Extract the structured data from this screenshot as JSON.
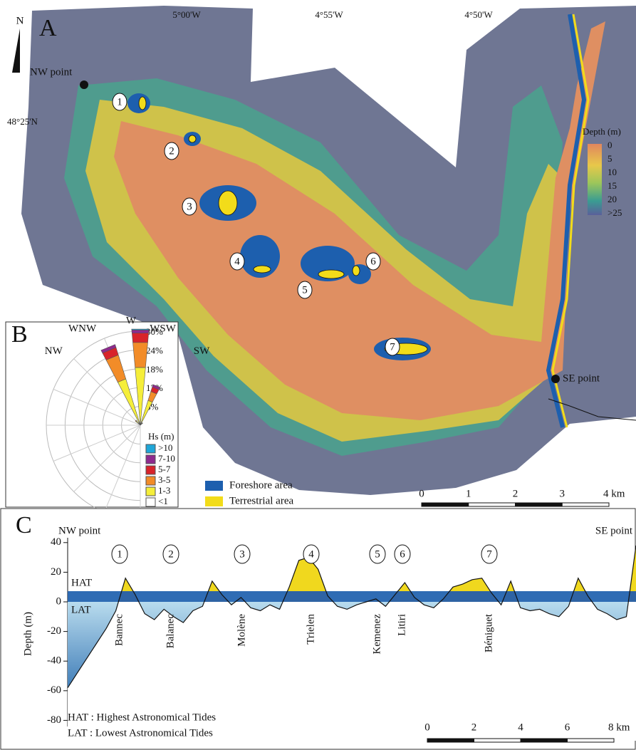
{
  "panel_a": {
    "label": "A",
    "north": "N",
    "nw_point": "NW point",
    "se_point": "SE point",
    "longitudes": [
      "5°00'W",
      "4°55'W",
      "4°50'W"
    ],
    "latitude": "48°25'N",
    "sites": [
      "1",
      "2",
      "3",
      "4",
      "5",
      "6",
      "7"
    ],
    "depth_legend": {
      "title": "Depth (m)",
      "labels": [
        "0",
        "5",
        "10",
        "15",
        "20",
        ">25"
      ]
    },
    "area_legend": [
      "Foreshore area",
      "Terrestrial area"
    ],
    "scale": [
      "0",
      "1",
      "2",
      "3",
      "4 km"
    ]
  },
  "panel_b": {
    "label": "B",
    "rings": [
      {
        "value": 30,
        "label": "30%"
      },
      {
        "value": 24,
        "label": "24%"
      },
      {
        "value": 18,
        "label": "18%"
      },
      {
        "value": 12,
        "label": "12%"
      },
      {
        "value": 6,
        "label": "6%"
      }
    ],
    "directions": [
      "NW",
      "WNW",
      "W",
      "WSW",
      "SW"
    ],
    "hs_title": "Hs (m)",
    "hs_classes": [
      {
        "label": ">10",
        "color": "#1fa6d8"
      },
      {
        "label": "7-10",
        "color": "#8e2a8e"
      },
      {
        "label": "5-7",
        "color": "#d8232a"
      },
      {
        "label": "3-5",
        "color": "#f28c28"
      },
      {
        "label": "1-3",
        "color": "#f5ee3a"
      },
      {
        "label": "<1",
        "color": "#ffffff"
      }
    ],
    "sector_frequencies": [
      [
        0,
        0,
        0,
        0.3,
        1.5,
        0.3
      ],
      [
        0,
        1,
        2.5,
        8,
        15,
        0.5
      ],
      [
        0.3,
        1,
        3,
        8,
        18,
        0.5
      ],
      [
        0,
        0.8,
        1.5,
        3,
        8,
        0.3
      ],
      [
        0,
        0,
        0,
        0,
        0.8,
        0.2
      ]
    ]
  },
  "panel_c": {
    "label": "C",
    "nw_point": "NW point",
    "se_point": "SE point",
    "axis_label": "Depth (m)",
    "yticks": [
      40,
      20,
      0,
      -20,
      -40,
      -60,
      -80
    ],
    "hat": "HAT",
    "lat": "LAT",
    "sites": [
      {
        "number": "1",
        "name": "Bannec"
      },
      {
        "number": "2",
        "name": "Balanec"
      },
      {
        "number": "3",
        "name": "Molène"
      },
      {
        "number": "4",
        "name": "Trielen"
      },
      {
        "number": "5",
        "name": "Kemenez"
      },
      {
        "number": "6",
        "name": "Litiri"
      },
      {
        "number": "7",
        "name": "Béniguet"
      }
    ],
    "legend": [
      "HAT : Highest Astronomical Tides",
      "LAT : Lowest Astronomical Tides"
    ],
    "scale": [
      "0",
      "2",
      "4",
      "6",
      "8 km"
    ],
    "profile": [
      -58,
      -48,
      -38,
      -28,
      -18,
      -6,
      16,
      5,
      -8,
      -12,
      -5,
      -10,
      -14,
      -6,
      -3,
      14,
      5,
      -2,
      3,
      -4,
      -6,
      -2,
      -5,
      10,
      28,
      30,
      22,
      4,
      -3,
      -5,
      -2,
      0,
      2,
      -3,
      5,
      13,
      3,
      -2,
      -4,
      2,
      10,
      12,
      15,
      16,
      6,
      -2,
      14,
      -4,
      -6,
      -5,
      -8,
      -10,
      -3,
      16,
      4,
      -5,
      -8,
      -12,
      -10,
      38
    ]
  }
}
